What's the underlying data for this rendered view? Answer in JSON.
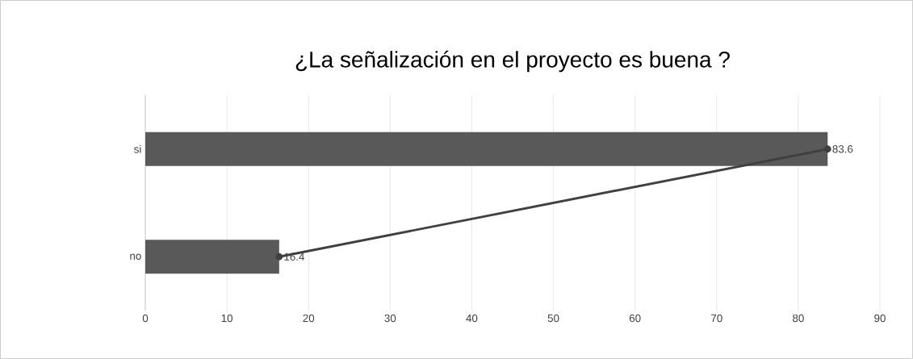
{
  "chart_data": {
    "type": "bar",
    "orientation": "horizontal",
    "title": "¿La señalización en el proyecto es buena ?",
    "categories": [
      "si",
      "no"
    ],
    "series": [
      {
        "type": "line",
        "color": "#404040",
        "marker": "circle",
        "values": [
          83.6,
          16.4
        ]
      },
      {
        "color": "#595959",
        "values": [
          83.6,
          16.4
        ],
        "value_labels": [
          "83.6",
          "16.4"
        ]
      }
    ],
    "xlim": [
      0,
      90
    ],
    "xticks": [
      0,
      10,
      20,
      30,
      40,
      50,
      60,
      70,
      80,
      90
    ],
    "grid": "x"
  }
}
